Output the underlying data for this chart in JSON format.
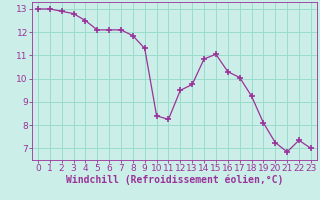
{
  "x": [
    0,
    1,
    2,
    3,
    4,
    5,
    6,
    7,
    8,
    9,
    10,
    11,
    12,
    13,
    14,
    15,
    16,
    17,
    18,
    19,
    20,
    21,
    22,
    23
  ],
  "y": [
    13.0,
    13.0,
    12.9,
    12.8,
    12.5,
    12.1,
    12.1,
    12.1,
    11.85,
    11.3,
    8.4,
    8.25,
    9.5,
    9.75,
    10.85,
    11.05,
    10.3,
    10.05,
    9.25,
    8.1,
    7.25,
    6.85,
    7.35,
    7.0
  ],
  "line_color": "#993399",
  "marker_color": "#993399",
  "bg_color": "#cceee8",
  "grid_color": "#99ddcc",
  "xlabel": "Windchill (Refroidissement éolien,°C)",
  "xlim": [
    -0.5,
    23.5
  ],
  "ylim": [
    6.5,
    13.3
  ],
  "yticks": [
    7,
    8,
    9,
    10,
    11,
    12,
    13
  ],
  "xticks": [
    0,
    1,
    2,
    3,
    4,
    5,
    6,
    7,
    8,
    9,
    10,
    11,
    12,
    13,
    14,
    15,
    16,
    17,
    18,
    19,
    20,
    21,
    22,
    23
  ],
  "tick_label_color": "#993399",
  "axis_color": "#993399",
  "xlabel_fontsize": 7.0,
  "tick_fontsize": 6.5
}
